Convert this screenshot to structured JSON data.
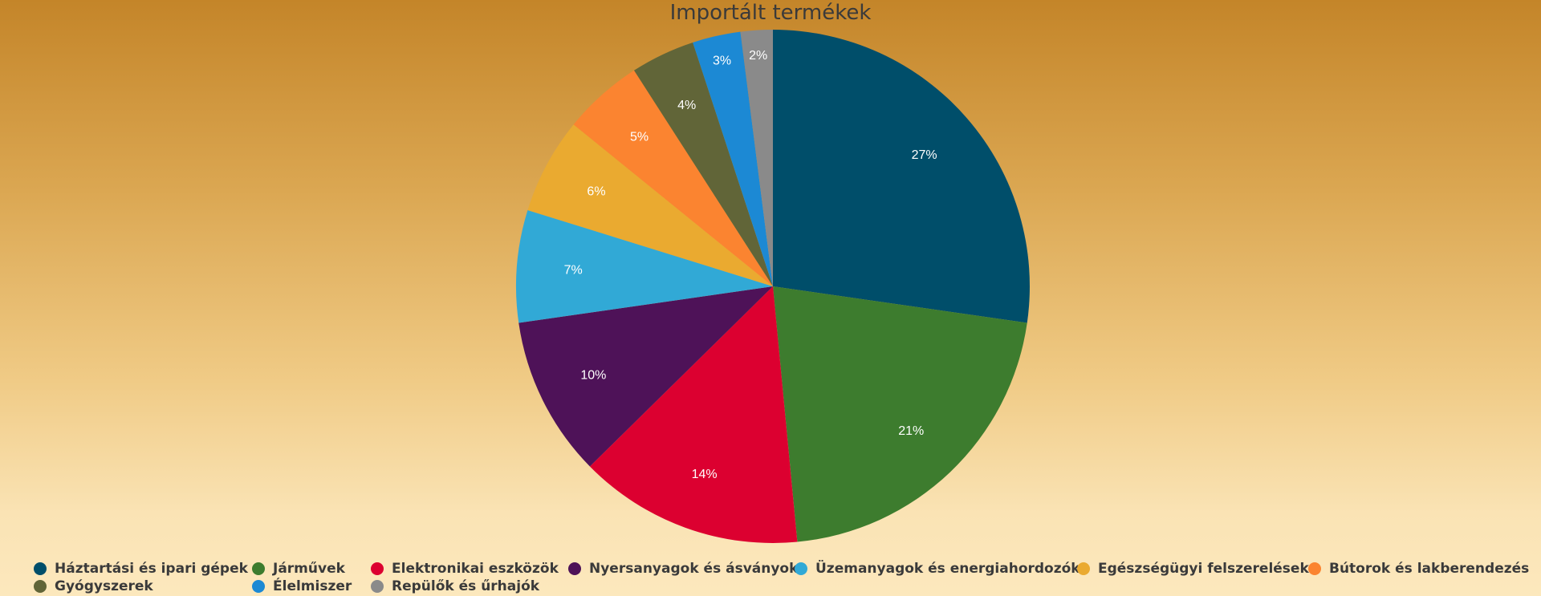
{
  "chart_data": {
    "type": "pie",
    "title": "Importált termékek",
    "categories": [
      "Háztartási és ipari gépek",
      "Járművek",
      "Elektronikai eszközök",
      "Nyersanyagok és ásványok",
      "Üzemanyagok és energiahordozók",
      "Egészségügyi felszerelések",
      "Bútorok és lakberendezés",
      "Gyógyszerek",
      "Élelmiszer",
      "Repülők és űrhajók"
    ],
    "values": [
      27,
      21,
      14,
      10,
      7,
      6,
      5,
      4,
      3,
      2
    ],
    "labels": [
      "27%",
      "21%",
      "14%",
      "10%",
      "7%",
      "6%",
      "5%",
      "4%",
      "3%",
      "2%"
    ],
    "colors": [
      "#004e6a",
      "#3d7c2e",
      "#dc0030",
      "#4e1258",
      "#31a9d6",
      "#eaaa30",
      "#fb8430",
      "#616538",
      "#1c89d4",
      "#8a8a8a"
    ],
    "legend_position": "bottom"
  }
}
